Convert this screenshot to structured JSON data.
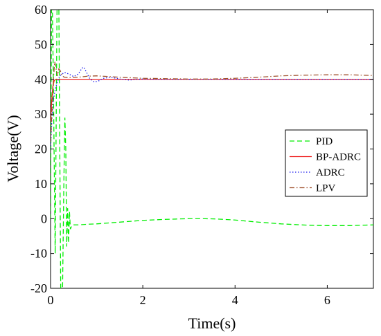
{
  "chart_data": {
    "type": "line",
    "title": "",
    "xlabel": "Time(s)",
    "ylabel": "Voltage(V)",
    "xlim": [
      0,
      7
    ],
    "ylim": [
      -20,
      60
    ],
    "xticks": [
      0,
      2,
      4,
      6
    ],
    "yticks": [
      -20,
      -10,
      0,
      10,
      20,
      30,
      40,
      50,
      60
    ],
    "grid": false,
    "legend_position": "center-right",
    "series": [
      {
        "name": "PID",
        "color": "#00ee00",
        "dash": "dashed",
        "x": [
          0,
          0.02,
          0.04,
          0.06,
          0.1,
          0.14,
          0.18,
          0.22,
          0.26,
          0.29,
          0.31,
          0.33,
          0.35,
          0.37,
          0.39,
          0.41,
          0.43,
          0.46,
          0.5,
          0.6,
          0.8,
          1.0,
          1.5,
          2.0,
          2.5,
          3.0,
          3.3,
          3.6,
          4.0,
          4.5,
          5.0,
          5.3,
          5.6,
          6.0,
          6.5,
          7.0
        ],
        "values": [
          0,
          60,
          60,
          40,
          -10,
          60,
          60,
          -20,
          -20,
          12,
          29,
          20,
          -8,
          3,
          -7,
          2,
          -3,
          -2,
          -1.8,
          -1.8,
          -1.6,
          -1.5,
          -1.0,
          -0.5,
          -0.2,
          0.0,
          0.0,
          -0.1,
          -0.4,
          -1.0,
          -1.5,
          -1.7,
          -1.9,
          -2.0,
          -2.0,
          -1.8
        ]
      },
      {
        "name": "BP-ADRC",
        "color": "#ee1c1c",
        "dash": "solid",
        "x": [
          0,
          0.02,
          0.05,
          0.08,
          0.12,
          0.2,
          0.5,
          1.0,
          2.0,
          3.0,
          4.0,
          5.0,
          6.0,
          7.0
        ],
        "values": [
          28,
          33,
          38,
          39.7,
          40,
          40,
          40,
          40,
          40,
          40,
          40,
          40,
          40,
          40
        ]
      },
      {
        "name": "ADRC",
        "color": "#1c1cee",
        "dash": "dotted",
        "x": [
          0,
          0.03,
          0.06,
          0.1,
          0.14,
          0.2,
          0.3,
          0.4,
          0.5,
          0.6,
          0.68,
          0.72,
          0.78,
          0.85,
          0.95,
          1.05,
          1.15,
          1.3,
          1.5,
          1.7,
          2.0,
          2.3,
          2.6,
          3.0,
          4.0,
          5.0,
          6.0,
          7.0
        ],
        "values": [
          20,
          29,
          34,
          37,
          39,
          41,
          42,
          41.5,
          40.8,
          41.5,
          43.2,
          43.5,
          42,
          40.2,
          39.2,
          39.6,
          40.3,
          40.6,
          40.1,
          39.8,
          40.1,
          40.0,
          40.0,
          40.0,
          40.0,
          40.0,
          40.0,
          40.0
        ]
      },
      {
        "name": "LPV",
        "color": "#a0522d",
        "dash": "dashdot",
        "x": [
          0,
          0.03,
          0.06,
          0.09,
          0.12,
          0.15,
          0.18,
          0.21,
          0.25,
          0.3,
          0.4,
          0.6,
          0.8,
          1.0,
          1.5,
          2.0,
          2.5,
          3.0,
          3.5,
          4.0,
          4.5,
          5.0,
          5.5,
          6.0,
          6.5,
          7.0
        ],
        "values": [
          22,
          31,
          40,
          45,
          43,
          41,
          43,
          42.5,
          41,
          40.6,
          40.5,
          40.6,
          40.9,
          41,
          40.6,
          40.3,
          40.2,
          40.1,
          40.1,
          40.3,
          40.6,
          41.0,
          41.2,
          41.3,
          41.3,
          41.1
        ]
      }
    ]
  }
}
